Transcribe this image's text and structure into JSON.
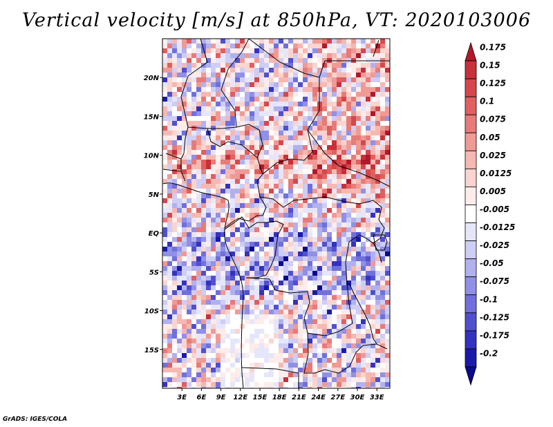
{
  "title": "Vertical velocity [m/s] at 850hPa, VT: 2020103006",
  "credit": "GrADS: IGES/COLA",
  "map": {
    "lat_range": [
      -20,
      25
    ],
    "lon_range": [
      0,
      35
    ],
    "lat_ticks": [
      {
        "value": 20,
        "label": "20N"
      },
      {
        "value": 15,
        "label": "15N"
      },
      {
        "value": 10,
        "label": "10N"
      },
      {
        "value": 5,
        "label": "5N"
      },
      {
        "value": 0,
        "label": "EQ"
      },
      {
        "value": -5,
        "label": "5S"
      },
      {
        "value": -10,
        "label": "10S"
      },
      {
        "value": -15,
        "label": "15S"
      }
    ],
    "lon_ticks": [
      {
        "value": 3,
        "label": "3E"
      },
      {
        "value": 6,
        "label": "6E"
      },
      {
        "value": 9,
        "label": "9E"
      },
      {
        "value": 12,
        "label": "12E"
      },
      {
        "value": 15,
        "label": "15E"
      },
      {
        "value": 18,
        "label": "18E"
      },
      {
        "value": 21,
        "label": "21E"
      },
      {
        "value": 24,
        "label": "24E"
      },
      {
        "value": 27,
        "label": "27E"
      },
      {
        "value": 30,
        "label": "30E"
      },
      {
        "value": 33,
        "label": "33E"
      }
    ]
  },
  "colorbar": {
    "levels": [
      "0.175",
      "0.15",
      "0.125",
      "0.1",
      "0.075",
      "0.05",
      "0.025",
      "0.0125",
      "0.005",
      "-0.005",
      "-0.0125",
      "-0.025",
      "-0.05",
      "-0.075",
      "-0.1",
      "-0.125",
      "-0.175",
      "-0.2"
    ],
    "colors": [
      "#b2182b",
      "#c8303a",
      "#d6474c",
      "#e05f5f",
      "#e87b78",
      "#f09a95",
      "#f6b8b2",
      "#fad4cf",
      "#fdecea",
      "#ffffff",
      "#e6e6fb",
      "#cdcdf5",
      "#b1b1ee",
      "#9090e6",
      "#7070dc",
      "#5050cf",
      "#3333bf",
      "#1a1aa8",
      "#0a0a8c"
    ]
  }
}
